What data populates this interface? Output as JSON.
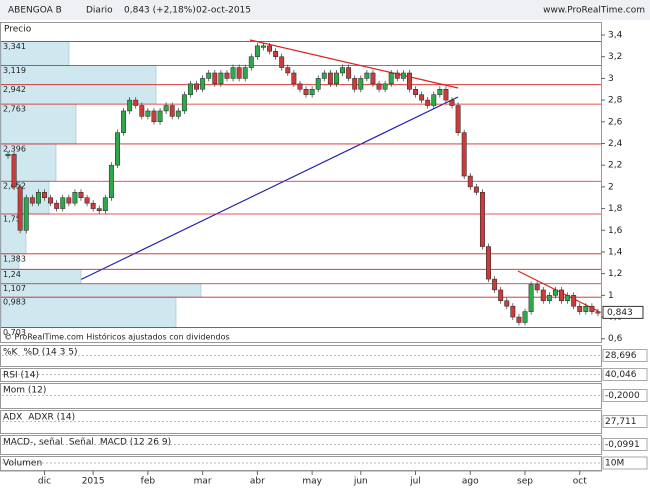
{
  "header": {
    "symbol": "ABENGOA B",
    "period": "Diario",
    "quote": "0,843 (+2,18%)",
    "date": "02-oct-2015",
    "site": "www.ProRealTime.com"
  },
  "chart_data": {
    "type": "candlestick",
    "title": "Precio",
    "note": "© ProRealTime.com  Históricos ajustados con dividendos",
    "categories": [
      null,
      null,
      null,
      null,
      null,
      null,
      "dic",
      null,
      null,
      null,
      null,
      null,
      null,
      null,
      "2015",
      null,
      null,
      null,
      null,
      null,
      null,
      null,
      null,
      "feb",
      null,
      null,
      null,
      null,
      null,
      null,
      null,
      null,
      "mar",
      null,
      null,
      null,
      null,
      null,
      null,
      null,
      null,
      "abr",
      null,
      null,
      null,
      null,
      null,
      null,
      null,
      null,
      "may",
      null,
      null,
      null,
      null,
      null,
      null,
      null,
      "jun",
      null,
      null,
      null,
      null,
      null,
      null,
      null,
      null,
      "jul",
      null,
      null,
      null,
      null,
      null,
      null,
      null,
      null,
      "ago",
      null,
      null,
      null,
      null,
      null,
      null,
      null,
      null,
      "sep",
      null,
      null,
      null,
      null,
      null,
      null,
      null,
      null,
      "oct",
      null,
      null,
      null
    ],
    "values": [
      2.3,
      2.0,
      1.6,
      1.9,
      1.85,
      1.95,
      1.9,
      1.85,
      1.8,
      1.9,
      1.85,
      1.95,
      1.9,
      1.85,
      1.8,
      1.78,
      1.9,
      2.2,
      2.5,
      2.7,
      2.8,
      2.75,
      2.65,
      2.7,
      2.6,
      2.7,
      2.75,
      2.65,
      2.7,
      2.85,
      2.95,
      2.9,
      3.0,
      3.05,
      2.95,
      3.05,
      3.0,
      3.1,
      3.0,
      3.1,
      3.2,
      3.3,
      3.3,
      3.25,
      3.2,
      3.1,
      3.05,
      2.95,
      2.9,
      2.85,
      2.9,
      3.0,
      3.05,
      2.95,
      3.05,
      3.1,
      3.0,
      2.9,
      3.0,
      3.05,
      2.95,
      2.9,
      2.95,
      3.05,
      3.0,
      3.05,
      2.9,
      2.85,
      2.8,
      2.75,
      2.85,
      2.9,
      2.8,
      2.75,
      2.5,
      2.1,
      2.0,
      1.95,
      1.45,
      1.15,
      1.05,
      0.95,
      0.9,
      0.8,
      0.75,
      0.85,
      1.1,
      1.05,
      0.95,
      1.0,
      1.05,
      0.95,
      1.0,
      0.9,
      0.85,
      0.9,
      0.85,
      0.843
    ],
    "up_color": "#2ea84a",
    "down_color": "#c83c3c",
    "last_price": {
      "value": 0.843,
      "label": "0,843"
    },
    "ylim": [
      0.57,
      3.52
    ],
    "yticks": [
      {
        "value": 3.4,
        "label": "3,4"
      },
      {
        "value": 3.2,
        "label": "3,2"
      },
      3,
      {
        "value": 2.8,
        "label": "2,8"
      },
      {
        "value": 2.6,
        "label": "2,6"
      },
      {
        "value": 2.4,
        "label": "2,4"
      },
      {
        "value": 2.2,
        "label": "2,2"
      },
      2,
      {
        "value": 1.8,
        "label": "1,8"
      },
      {
        "value": 1.6,
        "label": "1,6"
      },
      {
        "value": 1.4,
        "label": "1,4"
      },
      {
        "value": 1.2,
        "label": "1,2"
      },
      1,
      {
        "value": 0.8,
        "label": "0,8"
      },
      {
        "value": 0.6,
        "label": "0,6"
      }
    ],
    "levels": [
      {
        "value": 3.341,
        "label": "3,341"
      },
      {
        "value": 3.119,
        "label": "3,119"
      },
      {
        "value": 2.942,
        "label": "2,942"
      },
      {
        "value": 2.763,
        "label": "2,763"
      },
      {
        "value": 2.396,
        "label": "2,396"
      },
      {
        "value": 2.052,
        "label": "2,052"
      },
      {
        "value": 1.75,
        "label": "1,75"
      },
      {
        "value": 1.383,
        "label": "1,383"
      },
      {
        "value": 1.24,
        "label": "1,24"
      },
      {
        "value": 1.107,
        "label": "1,107"
      },
      {
        "value": 0.983,
        "label": "0,983"
      },
      {
        "value": 0.703,
        "label": "0,703"
      }
    ],
    "level_color": "#d42020",
    "volume_profile": [
      68,
      155,
      155,
      75,
      55,
      48,
      25,
      18,
      80,
      200,
      175
    ],
    "panels": [
      {
        "labels": [
          "%K",
          "%D (14 3 5)"
        ],
        "value": {
          "value": 28.696,
          "label": "28,696"
        }
      },
      {
        "labels": [
          "RSI (14)"
        ],
        "value": {
          "value": 40.046,
          "label": "40,046"
        }
      },
      {
        "labels": [
          "Mom (12)"
        ],
        "value": {
          "value": -0.2,
          "label": "-0,2000"
        }
      },
      {
        "labels": [
          "ADX",
          "ADXR (14)"
        ],
        "value": {
          "value": 27.711,
          "label": "27,711"
        }
      },
      {
        "labels": [
          "MACD-, señal",
          "Señal",
          "MACD (12 26 9)"
        ],
        "value": {
          "value": -0.0991,
          "label": "-0,0991"
        }
      },
      {
        "labels": [
          "Volumen"
        ],
        "value": {
          "value": 10000000,
          "label": "10M"
        }
      }
    ]
  }
}
